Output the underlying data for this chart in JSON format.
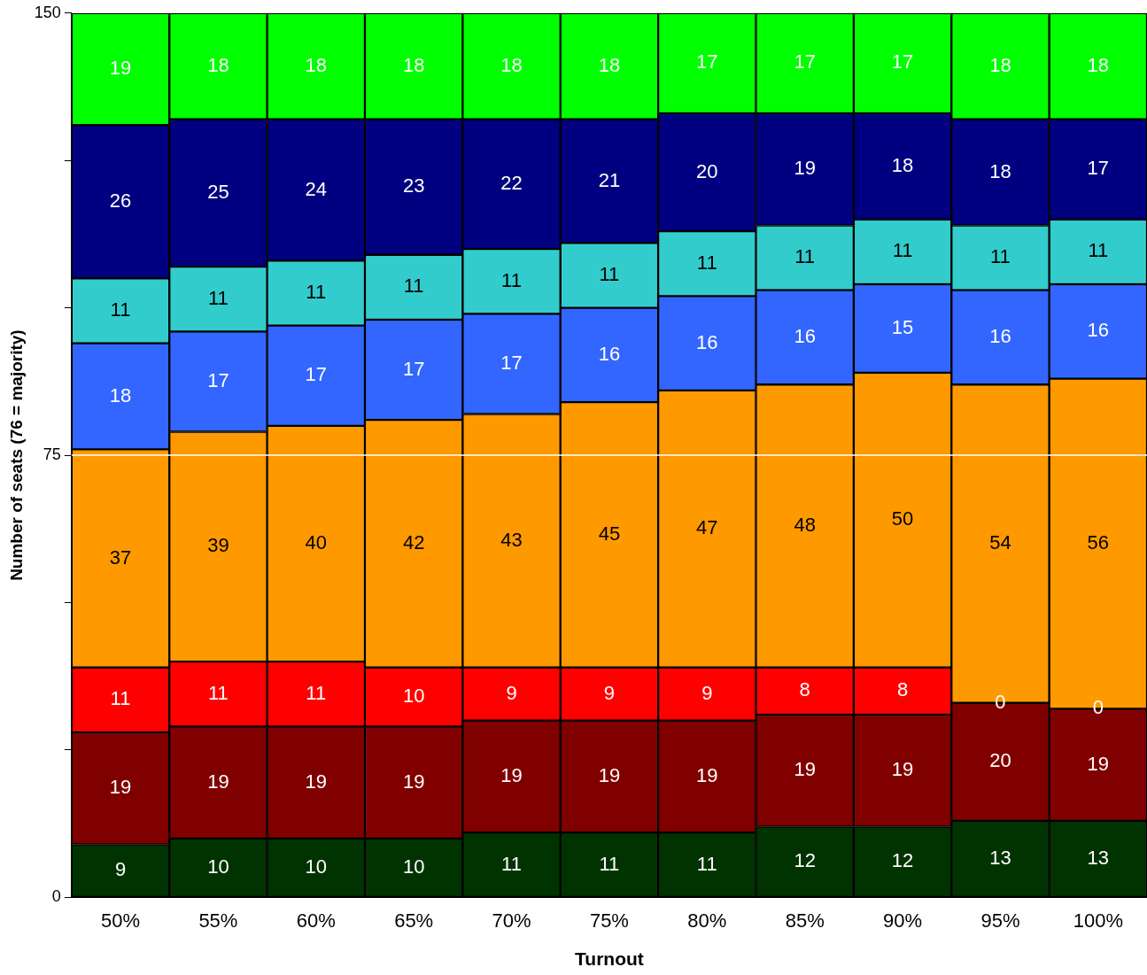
{
  "chart_data": {
    "type": "bar",
    "stacked": true,
    "xlabel": "Turnout",
    "ylabel": "Number of seats (76 = majority)",
    "categories": [
      "50%",
      "55%",
      "60%",
      "65%",
      "70%",
      "75%",
      "80%",
      "85%",
      "90%",
      "95%",
      "100%"
    ],
    "series": [
      {
        "color": "#003300",
        "values": [
          9,
          10,
          10,
          10,
          11,
          11,
          11,
          12,
          12,
          13,
          13
        ]
      },
      {
        "color": "#800000",
        "values": [
          19,
          19,
          19,
          19,
          19,
          19,
          19,
          19,
          19,
          20,
          19
        ]
      },
      {
        "color": "#ff0000",
        "values": [
          11,
          11,
          11,
          10,
          9,
          9,
          9,
          8,
          8,
          0,
          0
        ]
      },
      {
        "color": "#ff9900",
        "values": [
          37,
          39,
          40,
          42,
          43,
          45,
          47,
          48,
          50,
          54,
          56
        ]
      },
      {
        "color": "#3366ff",
        "values": [
          18,
          17,
          17,
          17,
          17,
          16,
          16,
          16,
          15,
          16,
          16
        ]
      },
      {
        "color": "#33cccc",
        "values": [
          11,
          11,
          11,
          11,
          11,
          11,
          11,
          11,
          11,
          11,
          11
        ]
      },
      {
        "color": "#000080",
        "values": [
          26,
          25,
          24,
          23,
          22,
          21,
          20,
          19,
          18,
          18,
          17
        ]
      },
      {
        "color": "#00ff00",
        "values": [
          19,
          18,
          18,
          18,
          18,
          18,
          17,
          17,
          17,
          18,
          18
        ]
      }
    ],
    "ylim": [
      0,
      150
    ],
    "yticks": [
      0,
      {
        "value": 25,
        "label": null
      },
      {
        "value": 50,
        "label": null
      },
      75,
      {
        "value": 100,
        "label": null
      },
      {
        "value": 125,
        "label": null
      },
      150
    ],
    "ref_lines": [
      {
        "axis": "y",
        "value": 75,
        "color": "#ffffff"
      }
    ],
    "data_labels": true,
    "grid": false,
    "legend": false
  }
}
